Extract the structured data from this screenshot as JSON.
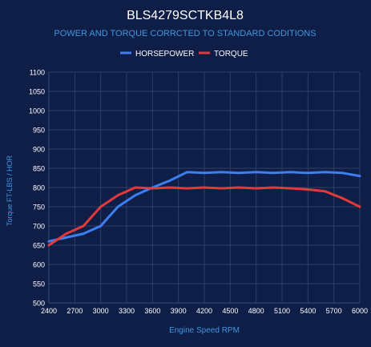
{
  "chart_data": {
    "type": "line",
    "title": "BLS4279SCTKB4L8",
    "subtitle": "POWER AND TORQUE CORRCTED TO STANDARD CODITIONS",
    "xlabel": "Engine Speed RPM",
    "ylabel": "Torque FT-LBS / HOR",
    "x": [
      2400,
      2600,
      2800,
      3000,
      3200,
      3400,
      3600,
      3800,
      4000,
      4200,
      4400,
      4600,
      4800,
      5000,
      5200,
      5400,
      5600,
      5800,
      6000
    ],
    "x_ticks": [
      2400,
      2700,
      3000,
      3300,
      3600,
      3900,
      4200,
      4500,
      4800,
      5100,
      5400,
      5700,
      6000
    ],
    "xlim": [
      2400,
      6000
    ],
    "ylim": [
      500,
      1100
    ],
    "y_ticks": [
      500,
      550,
      600,
      650,
      700,
      750,
      800,
      850,
      900,
      950,
      1000,
      1050,
      1100
    ],
    "grid": true,
    "legend_position": "top-center",
    "series": [
      {
        "name": "HORSEPOWER",
        "color": "#3d7ef0",
        "values": [
          660,
          670,
          680,
          700,
          750,
          780,
          800,
          818,
          840,
          838,
          840,
          838,
          840,
          838,
          840,
          838,
          840,
          838,
          830
        ]
      },
      {
        "name": "TORQUE",
        "color": "#e03a3a",
        "values": [
          650,
          680,
          700,
          750,
          780,
          800,
          798,
          800,
          798,
          800,
          798,
          800,
          798,
          800,
          798,
          795,
          790,
          772,
          750
        ]
      }
    ]
  }
}
